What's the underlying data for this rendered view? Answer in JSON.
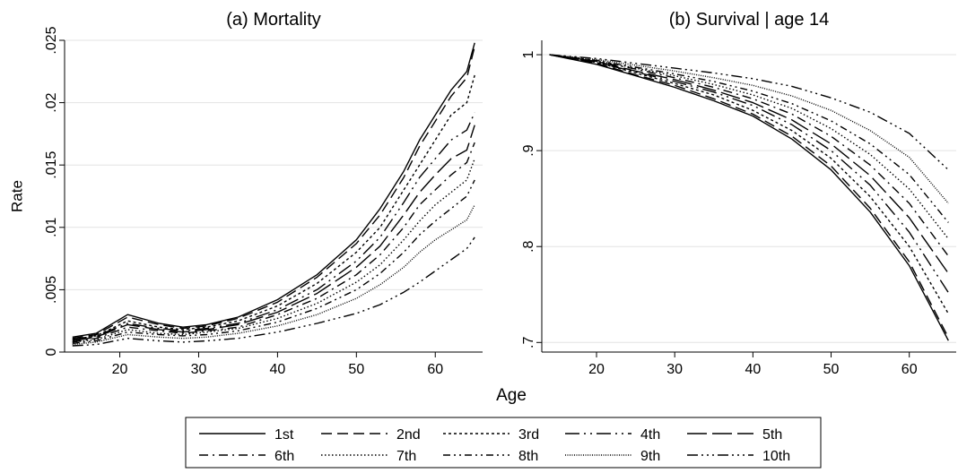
{
  "figure": {
    "xlabel": "Age"
  },
  "legend": {
    "placement": "bottom",
    "items": [
      {
        "label": "1st",
        "dash": ""
      },
      {
        "label": "2nd",
        "dash": "12,6"
      },
      {
        "label": "3rd",
        "dash": "3,3"
      },
      {
        "label": "4th",
        "dash": "16,5,2,5,2,5"
      },
      {
        "label": "5th",
        "dash": "22,6"
      },
      {
        "label": "6th",
        "dash": "10,5,2,5"
      },
      {
        "label": "7th",
        "dash": "1.5,2.5"
      },
      {
        "label": "8th",
        "dash": "8,4,2,4,2,4"
      },
      {
        "label": "9th",
        "dash": "1,1.5"
      },
      {
        "label": "10th",
        "dash": "12,4,2,4,2,4,2,4"
      }
    ]
  },
  "chart_data": [
    {
      "type": "line",
      "title": "(a) Mortality",
      "ylabel": "Rate",
      "xlim": [
        13,
        66
      ],
      "ylim": [
        0,
        0.025
      ],
      "xticks": [
        20,
        30,
        40,
        50,
        60
      ],
      "yticks": [
        0,
        0.005,
        0.01,
        0.015,
        0.02,
        0.025
      ],
      "ytick_labels": [
        "0",
        ".005",
        ".01",
        ".015",
        ".02",
        ".025"
      ],
      "grid": true,
      "x": [
        14,
        17,
        21,
        25,
        28,
        31,
        35,
        40,
        45,
        50,
        53,
        56,
        58,
        60,
        62,
        64,
        65
      ],
      "series": [
        {
          "name": "1st",
          "values": [
            0.0012,
            0.0015,
            0.003,
            0.0023,
            0.002,
            0.0022,
            0.0028,
            0.0042,
            0.0062,
            0.009,
            0.0115,
            0.0145,
            0.017,
            0.019,
            0.021,
            0.0225,
            0.0248
          ]
        },
        {
          "name": "2nd",
          "values": [
            0.0011,
            0.0014,
            0.0028,
            0.0022,
            0.0019,
            0.0021,
            0.0027,
            0.004,
            0.006,
            0.0087,
            0.011,
            0.014,
            0.0165,
            0.0185,
            0.0205,
            0.022,
            0.0245
          ]
        },
        {
          "name": "3rd",
          "values": [
            0.001,
            0.0013,
            0.0025,
            0.002,
            0.0018,
            0.002,
            0.0025,
            0.0037,
            0.0055,
            0.008,
            0.01,
            0.013,
            0.015,
            0.017,
            0.019,
            0.02,
            0.0222
          ]
        },
        {
          "name": "4th",
          "values": [
            0.001,
            0.0013,
            0.0023,
            0.0019,
            0.0017,
            0.0019,
            0.0023,
            0.0034,
            0.005,
            0.0073,
            0.0092,
            0.012,
            0.014,
            0.0155,
            0.017,
            0.0178,
            0.0192
          ]
        },
        {
          "name": "5th",
          "values": [
            0.0009,
            0.0012,
            0.0022,
            0.0018,
            0.0016,
            0.0018,
            0.0022,
            0.0032,
            0.0047,
            0.0068,
            0.0085,
            0.011,
            0.0128,
            0.0142,
            0.0155,
            0.0162,
            0.0182
          ]
        },
        {
          "name": "6th",
          "values": [
            0.0008,
            0.0011,
            0.002,
            0.0017,
            0.0015,
            0.0017,
            0.002,
            0.003,
            0.0043,
            0.0062,
            0.0078,
            0.01,
            0.0118,
            0.013,
            0.0142,
            0.0152,
            0.0168
          ]
        },
        {
          "name": "7th",
          "values": [
            0.0008,
            0.001,
            0.0018,
            0.0015,
            0.0014,
            0.0016,
            0.0019,
            0.0027,
            0.0039,
            0.0056,
            0.007,
            0.009,
            0.0105,
            0.0118,
            0.0128,
            0.0138,
            0.0155
          ]
        },
        {
          "name": "8th",
          "values": [
            0.0007,
            0.0009,
            0.0016,
            0.0014,
            0.0013,
            0.0014,
            0.0017,
            0.0024,
            0.0035,
            0.005,
            0.0063,
            0.008,
            0.0094,
            0.0105,
            0.0115,
            0.0125,
            0.0138
          ]
        },
        {
          "name": "9th",
          "values": [
            0.0006,
            0.0008,
            0.0014,
            0.0012,
            0.0011,
            0.0012,
            0.0015,
            0.0021,
            0.003,
            0.0043,
            0.0054,
            0.0068,
            0.008,
            0.009,
            0.0098,
            0.0106,
            0.0118
          ]
        },
        {
          "name": "10th",
          "values": [
            0.0005,
            0.0006,
            0.0011,
            0.0009,
            0.0008,
            0.0009,
            0.0011,
            0.0016,
            0.0023,
            0.0031,
            0.0038,
            0.0048,
            0.0056,
            0.0065,
            0.0074,
            0.0083,
            0.0092
          ]
        }
      ]
    },
    {
      "type": "line",
      "title": "(b) Survival | age 14",
      "ylabel": "",
      "xlim": [
        13,
        66
      ],
      "ylim": [
        0.69,
        1.015
      ],
      "xticks": [
        20,
        30,
        40,
        50,
        60
      ],
      "yticks": [
        0.7,
        0.8,
        0.9,
        1
      ],
      "ytick_labels": [
        ".7",
        ".8",
        ".9",
        "1"
      ],
      "grid": true,
      "x": [
        14,
        20,
        25,
        30,
        35,
        40,
        45,
        50,
        55,
        60,
        65
      ],
      "series": [
        {
          "name": "1st",
          "values": [
            1.0,
            0.99,
            0.978,
            0.966,
            0.952,
            0.936,
            0.912,
            0.88,
            0.836,
            0.78,
            0.702
          ]
        },
        {
          "name": "2nd",
          "values": [
            1.0,
            0.991,
            0.979,
            0.968,
            0.954,
            0.938,
            0.915,
            0.884,
            0.84,
            0.784,
            0.705
          ]
        },
        {
          "name": "3rd",
          "values": [
            1.0,
            0.992,
            0.981,
            0.97,
            0.958,
            0.942,
            0.921,
            0.892,
            0.852,
            0.8,
            0.73
          ]
        },
        {
          "name": "4th",
          "values": [
            1.0,
            0.992,
            0.982,
            0.972,
            0.961,
            0.947,
            0.927,
            0.9,
            0.864,
            0.815,
            0.752
          ]
        },
        {
          "name": "5th",
          "values": [
            1.0,
            0.993,
            0.983,
            0.974,
            0.963,
            0.95,
            0.932,
            0.907,
            0.874,
            0.83,
            0.772
          ]
        },
        {
          "name": "6th",
          "values": [
            1.0,
            0.993,
            0.985,
            0.976,
            0.966,
            0.954,
            0.938,
            0.915,
            0.885,
            0.845,
            0.79
          ]
        },
        {
          "name": "7th",
          "values": [
            1.0,
            0.994,
            0.986,
            0.978,
            0.969,
            0.958,
            0.944,
            0.923,
            0.896,
            0.86,
            0.808
          ]
        },
        {
          "name": "8th",
          "values": [
            1.0,
            0.994,
            0.987,
            0.98,
            0.972,
            0.962,
            0.949,
            0.931,
            0.907,
            0.875,
            0.825
          ]
        },
        {
          "name": "9th",
          "values": [
            1.0,
            0.995,
            0.989,
            0.983,
            0.976,
            0.968,
            0.957,
            0.942,
            0.921,
            0.893,
            0.845
          ]
        },
        {
          "name": "10th",
          "values": [
            1.0,
            0.996,
            0.991,
            0.986,
            0.981,
            0.975,
            0.967,
            0.955,
            0.94,
            0.918,
            0.88
          ]
        }
      ]
    }
  ]
}
